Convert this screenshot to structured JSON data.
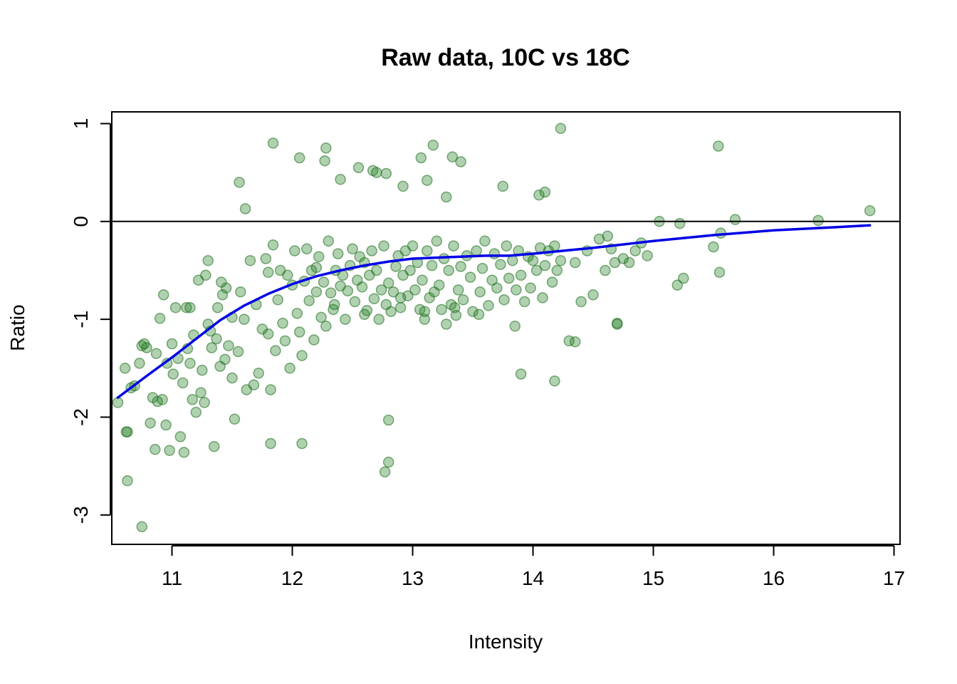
{
  "chart_data": {
    "type": "scatter",
    "title": "Raw data, 10C vs 18C",
    "xlabel": "Intensity",
    "ylabel": "Ratio",
    "xlim": [
      10.5,
      17.05
    ],
    "ylim": [
      -3.3,
      1.12
    ],
    "x_ticks": [
      11,
      12,
      13,
      14,
      15,
      16,
      17
    ],
    "y_ticks": [
      1,
      0,
      -1,
      -2,
      -3
    ],
    "x_tick_labels": [
      "11",
      "12",
      "13",
      "14",
      "15",
      "16",
      "17"
    ],
    "y_tick_labels": [
      "1",
      "0",
      "-1",
      "-2",
      "-3"
    ],
    "reference_line_y": 0,
    "grid": false,
    "legend": "none",
    "colors": {
      "points": "#1e7a1e",
      "points_stroke": "#1a6b1a",
      "fit": "#0000e6",
      "reference": "#000000",
      "frame": "#000000"
    },
    "series": [
      {
        "kind": "points",
        "x": [
          10.55,
          10.61,
          10.62,
          10.63,
          10.66,
          10.69,
          10.73,
          10.75,
          10.77,
          10.79,
          10.82,
          10.84,
          10.86,
          10.87,
          10.88,
          10.9,
          10.92,
          10.93,
          10.95,
          10.96,
          10.98,
          11.0,
          11.01,
          11.03,
          11.05,
          11.07,
          11.09,
          11.1,
          11.12,
          11.13,
          11.15,
          11.17,
          11.18,
          11.2,
          11.22,
          11.24,
          11.25,
          11.27,
          11.28,
          11.3,
          11.32,
          11.33,
          11.35,
          11.37,
          11.38,
          11.4,
          11.42,
          11.44,
          11.45,
          11.47,
          11.5,
          11.52,
          11.55,
          11.57,
          11.6,
          11.62,
          11.65,
          11.68,
          11.7,
          11.72,
          11.75,
          11.78,
          11.8,
          11.82,
          11.84,
          11.86,
          11.88,
          11.9,
          11.92,
          11.94,
          11.96,
          11.98,
          12.0,
          12.02,
          12.04,
          12.06,
          12.08,
          12.1,
          12.12,
          12.14,
          12.16,
          12.18,
          12.2,
          12.22,
          12.24,
          12.26,
          12.28,
          12.3,
          12.32,
          12.34,
          12.36,
          12.38,
          12.4,
          12.42,
          12.44,
          12.46,
          12.48,
          12.5,
          12.52,
          12.54,
          12.56,
          12.58,
          12.6,
          12.62,
          12.64,
          12.66,
          12.68,
          12.7,
          12.72,
          12.74,
          12.76,
          12.78,
          12.8,
          12.82,
          12.84,
          12.86,
          12.88,
          12.9,
          12.92,
          12.94,
          12.96,
          12.98,
          13.0,
          13.02,
          13.04,
          13.06,
          13.08,
          13.1,
          13.12,
          13.14,
          13.16,
          13.18,
          13.2,
          13.22,
          13.24,
          13.26,
          13.28,
          13.3,
          13.32,
          13.34,
          13.36,
          13.38,
          13.4,
          13.42,
          13.45,
          13.48,
          13.5,
          13.53,
          13.56,
          13.58,
          13.6,
          13.63,
          13.66,
          13.68,
          13.7,
          13.73,
          13.76,
          13.78,
          13.8,
          13.83,
          13.86,
          13.88,
          13.9,
          13.93,
          13.96,
          13.98,
          14.0,
          14.03,
          14.06,
          14.08,
          14.1,
          14.13,
          14.16,
          14.18,
          14.2,
          14.23,
          14.3,
          14.35,
          14.4,
          14.45,
          14.5,
          14.55,
          14.6,
          14.62,
          14.65,
          14.68,
          14.7,
          14.75,
          14.8,
          14.85,
          14.9,
          14.95,
          15.05,
          15.2,
          15.22,
          15.25,
          15.5,
          15.55,
          15.56,
          15.68,
          16.37,
          16.8,
          11.84,
          12.06,
          12.28,
          12.27,
          12.55,
          12.67,
          12.78,
          13.07,
          13.17,
          13.33,
          13.4,
          13.12,
          14.23,
          15.54,
          11.56,
          11.61,
          12.4,
          12.7,
          12.92,
          13.28,
          13.75,
          14.05,
          14.1,
          12.8,
          12.77,
          12.8,
          13.9,
          14.18,
          12.08,
          11.82,
          10.75,
          10.63,
          11.15,
          11.3,
          11.41,
          11.5,
          11.8,
          12.2,
          12.35,
          12.6,
          12.9,
          13.1,
          13.35,
          13.55,
          13.85,
          14.35,
          14.7
        ],
        "y": [
          -1.85,
          -1.5,
          -2.15,
          -2.65,
          -1.7,
          -1.68,
          -1.45,
          -1.27,
          -1.25,
          -1.29,
          -2.06,
          -1.8,
          -2.33,
          -1.35,
          -1.84,
          -0.99,
          -1.82,
          -0.75,
          -2.08,
          -1.45,
          -2.34,
          -1.25,
          -1.56,
          -0.88,
          -1.4,
          -2.2,
          -1.65,
          -2.36,
          -0.88,
          -1.3,
          -1.45,
          -1.82,
          -1.16,
          -1.95,
          -0.6,
          -1.75,
          -1.52,
          -1.85,
          -0.55,
          -0.4,
          -1.12,
          -1.29,
          -2.3,
          -1.2,
          -0.88,
          -1.48,
          -0.75,
          -1.41,
          -0.68,
          -1.27,
          -1.6,
          -2.02,
          -1.33,
          -0.72,
          -1.0,
          -1.72,
          -0.4,
          -1.67,
          -0.85,
          -1.55,
          -1.1,
          -0.38,
          -0.52,
          -1.72,
          -0.24,
          -1.32,
          -0.8,
          -0.5,
          -1.04,
          -1.22,
          -0.55,
          -1.5,
          -0.65,
          -0.3,
          -0.94,
          -1.13,
          -1.37,
          -0.61,
          -0.28,
          -0.81,
          -0.5,
          -1.21,
          -0.47,
          -0.36,
          -0.98,
          -0.62,
          -1.07,
          -0.2,
          -0.73,
          -0.9,
          -0.5,
          -0.33,
          -0.66,
          -0.55,
          -1.0,
          -0.71,
          -0.45,
          -0.28,
          -0.82,
          -0.6,
          -0.36,
          -0.67,
          -0.42,
          -0.91,
          -0.55,
          -0.3,
          -0.79,
          -0.5,
          -1.0,
          -0.7,
          -0.25,
          -0.85,
          -0.63,
          -0.92,
          -0.72,
          -0.46,
          -0.35,
          -0.88,
          -0.55,
          -0.3,
          -0.76,
          -0.5,
          -0.25,
          -0.7,
          -0.42,
          -0.9,
          -0.6,
          -1.0,
          -0.3,
          -0.78,
          -0.45,
          -0.72,
          -0.2,
          -0.65,
          -0.9,
          -0.38,
          -1.05,
          -0.5,
          -0.85,
          -0.25,
          -0.96,
          -0.7,
          -0.46,
          -0.8,
          -0.35,
          -0.57,
          -0.92,
          -0.3,
          -0.72,
          -0.48,
          -0.2,
          -0.86,
          -0.6,
          -0.33,
          -0.68,
          -0.44,
          -0.8,
          -0.25,
          -0.58,
          -0.4,
          -0.7,
          -0.3,
          -0.55,
          -0.82,
          -0.36,
          -0.68,
          -0.4,
          -0.5,
          -0.27,
          -0.78,
          -0.45,
          -0.3,
          -0.62,
          -0.25,
          -0.5,
          -0.4,
          -1.22,
          -0.42,
          -0.82,
          -0.3,
          -0.75,
          -0.18,
          -0.5,
          -0.15,
          -0.28,
          -0.42,
          -1.05,
          -0.38,
          -0.42,
          -0.3,
          -0.22,
          -0.35,
          0.0,
          -0.65,
          -0.02,
          -0.58,
          -0.26,
          -0.52,
          -0.12,
          0.02,
          0.01,
          0.11,
          0.8,
          0.65,
          0.75,
          0.62,
          0.55,
          0.52,
          0.49,
          0.65,
          0.78,
          0.66,
          0.61,
          0.42,
          0.95,
          0.77,
          0.4,
          0.13,
          0.43,
          0.5,
          0.36,
          0.25,
          0.36,
          0.27,
          0.3,
          -2.03,
          -2.56,
          -2.46,
          -1.56,
          -1.63,
          -2.27,
          -2.27,
          -3.12,
          -2.15,
          -0.88,
          -1.05,
          -0.62,
          -0.98,
          -1.15,
          -0.72,
          -0.85,
          -0.95,
          -0.78,
          -0.92,
          -0.88,
          -0.95,
          -1.07,
          -1.23,
          -1.04
        ],
        "color": "#1e7a1e",
        "opacity": 0.35
      },
      {
        "kind": "fit-line",
        "x": [
          10.55,
          10.8,
          11.0,
          11.2,
          11.4,
          11.6,
          11.8,
          12.0,
          12.2,
          12.4,
          12.6,
          12.8,
          13.0,
          13.2,
          13.4,
          13.6,
          13.8,
          14.0,
          14.5,
          15.0,
          15.5,
          16.0,
          16.5,
          16.8
        ],
        "y": [
          -1.8,
          -1.57,
          -1.39,
          -1.2,
          -1.01,
          -0.86,
          -0.74,
          -0.64,
          -0.56,
          -0.5,
          -0.45,
          -0.41,
          -0.38,
          -0.37,
          -0.36,
          -0.35,
          -0.35,
          -0.33,
          -0.27,
          -0.2,
          -0.14,
          -0.09,
          -0.06,
          -0.04
        ],
        "color": "#0000e6"
      }
    ]
  }
}
